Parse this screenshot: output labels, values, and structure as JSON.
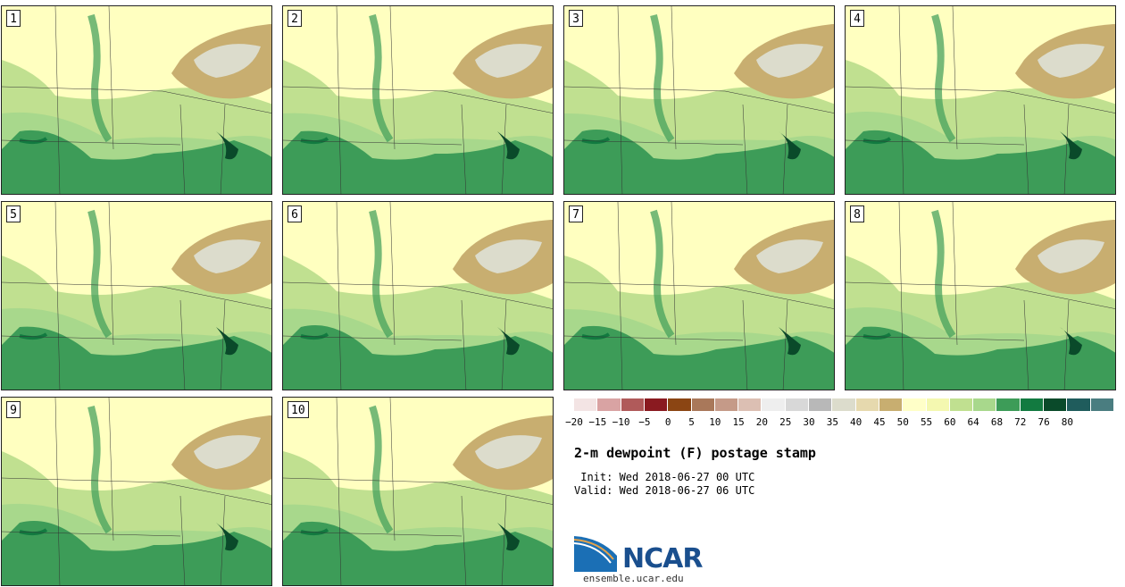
{
  "panels": [
    {
      "number": "1"
    },
    {
      "number": "2"
    },
    {
      "number": "3"
    },
    {
      "number": "4"
    },
    {
      "number": "5"
    },
    {
      "number": "6"
    },
    {
      "number": "7"
    },
    {
      "number": "8"
    },
    {
      "number": "9"
    },
    {
      "number": "10"
    }
  ],
  "colorbar": {
    "labels": [
      "−20",
      "−15",
      "−10",
      "−5",
      "0",
      "5",
      "10",
      "15",
      "20",
      "25",
      "30",
      "35",
      "40",
      "45",
      "50",
      "55",
      "60",
      "64",
      "68",
      "72",
      "76",
      "80"
    ],
    "colors": [
      "#f3e4e4",
      "#d9a3a3",
      "#b05a5a",
      "#8a1a20",
      "#8b4513",
      "#a9785a",
      "#c59a88",
      "#dcbfb3",
      "#eeeeee",
      "#d8d8d8",
      "#b8b8b8",
      "#dcdccc",
      "#e6d9ae",
      "#c8ae70",
      "#ffffc8",
      "#f4f8b0",
      "#c0e090",
      "#a8d88c",
      "#3d9c58",
      "#127a40",
      "#0a4a2a",
      "#1f5c5c",
      "#4a7d80"
    ]
  },
  "title": "2-m dewpoint (F) postage stamp",
  "init": " Init: Wed 2018-06-27 00 UTC",
  "valid": "Valid: Wed 2018-06-27 06 UTC",
  "logo": {
    "name": "NCAR",
    "url": "ensemble.ucar.edu"
  }
}
